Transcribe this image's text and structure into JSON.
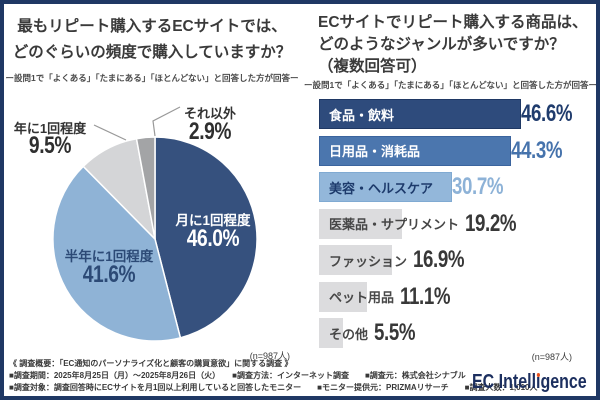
{
  "left_panel": {
    "title_line1": "最もリピート購入するECサイトでは、",
    "title_line2": "どのぐらいの頻度で購入していますか？",
    "subtitle": "ー設問1で「よくある」「たまにある」「ほとんどない」と回答した方が回答ー",
    "n_label": "(n=987人)"
  },
  "right_panel": {
    "title_line1": "ECサイトでリピート購入する商品は、",
    "title_line2": "どのようなジャンルが多いですか？",
    "title_line3": "（複数回答可）",
    "subtitle": "ー設問1で「よくある」「たまにある」「ほとんどない」と回答した方が回答ー",
    "n_label": "(n=987人)"
  },
  "chart_data": [
    {
      "type": "pie",
      "title": "最もリピート購入するECサイトでは、どのぐらいの頻度で購入していますか？",
      "unit": "%",
      "start_angle_deg": 0,
      "direction": "clockwise",
      "n": "(n=987人)",
      "slices": [
        {
          "label": "月に1回程度",
          "value": 46.0,
          "display": "46.0%",
          "color": "#36517e",
          "label_placement": "inside",
          "text_color": "#ffffff"
        },
        {
          "label": "半年に1回程度",
          "value": 41.6,
          "display": "41.6%",
          "color": "#8fb3d6",
          "label_placement": "inside",
          "text_color": "#2c4a76"
        },
        {
          "label": "年に1回程度",
          "value": 9.5,
          "display": "9.5%",
          "color": "#d4d5d7",
          "label_placement": "outside",
          "text_color": "#333333"
        },
        {
          "label": "それ以外",
          "value": 2.9,
          "display": "2.9%",
          "color": "#a3a4a6",
          "label_placement": "outside",
          "text_color": "#333333"
        }
      ]
    },
    {
      "type": "bar",
      "orientation": "horizontal",
      "title": "ECサイトでリピート購入する商品は、どのようなジャンルが多いですか？（複数回答可）",
      "unit": "%",
      "axis_shown": false,
      "value_labels_shown": true,
      "n": "(n=987人)",
      "categories": [
        "食品・飲料",
        "日用品・消耗品",
        "美容・ヘルスケア",
        "医薬品・サプリメント",
        "ファッション",
        "ペット用品",
        "その他"
      ],
      "values": [
        46.6,
        44.3,
        30.7,
        19.2,
        16.9,
        11.1,
        5.5
      ],
      "bars": [
        {
          "label": "食品・飲料",
          "value": 46.6,
          "display": "46.6%",
          "bar_color": "#2e4b7c",
          "border_color": "#1f3864",
          "label_color": "#ffffff",
          "value_color": "#203c6d"
        },
        {
          "label": "日用品・消耗品",
          "value": 44.3,
          "display": "44.3%",
          "bar_color": "#4b76ae",
          "border_color": "#3b649e",
          "label_color": "#ffffff",
          "value_color": "#4673ac"
        },
        {
          "label": "美容・ヘルスケア",
          "value": 30.7,
          "display": "30.7%",
          "bar_color": "#93b7da",
          "border_color": "#80aad2",
          "label_color": "#1d3a6b",
          "value_color": "#8db2d7"
        },
        {
          "label": "医薬品・サプリメント",
          "value": 19.2,
          "display": "19.2%",
          "bar_color": "#dcdcde",
          "border_color": "",
          "label_color": "#474747",
          "value_color": "#383838"
        },
        {
          "label": "ファッション",
          "value": 16.9,
          "display": "16.9%",
          "bar_color": "#dcdcde",
          "border_color": "",
          "label_color": "#474747",
          "value_color": "#383838"
        },
        {
          "label": "ペット用品",
          "value": 11.1,
          "display": "11.1%",
          "bar_color": "#dcdcde",
          "border_color": "",
          "label_color": "#474747",
          "value_color": "#383838"
        },
        {
          "label": "その他",
          "value": 5.5,
          "display": "5.5%",
          "bar_color": "#dcdcde",
          "border_color": "",
          "label_color": "#474747",
          "value_color": "#383838"
        }
      ]
    }
  ],
  "footer": {
    "line1": "《 調査概要：「EC通知のパーソナライズ化と顧客の購買意欲」に関する調査 》",
    "line2": "■調査期間：2025年8月25日（月）～2025年8月26日（火）　　■調査方法：インターネット調査　　■調査元：株式会社シナブル",
    "line3": "■調査対象：調査回答時にECサイトを月1回以上利用していると回答したモニター　　■モニター提供元：PRIZMAリサーチ　　■調査人数：1,010人"
  },
  "logo": {
    "text": "EC Intelligence",
    "prefix": "EC Intell",
    "i_base": "ı",
    "suffix": "gence",
    "dot_color": "#e8511d",
    "text_color": "#1c2f5f"
  },
  "colors": {
    "frame_border": "#1f3864",
    "background": "#ffffff"
  }
}
